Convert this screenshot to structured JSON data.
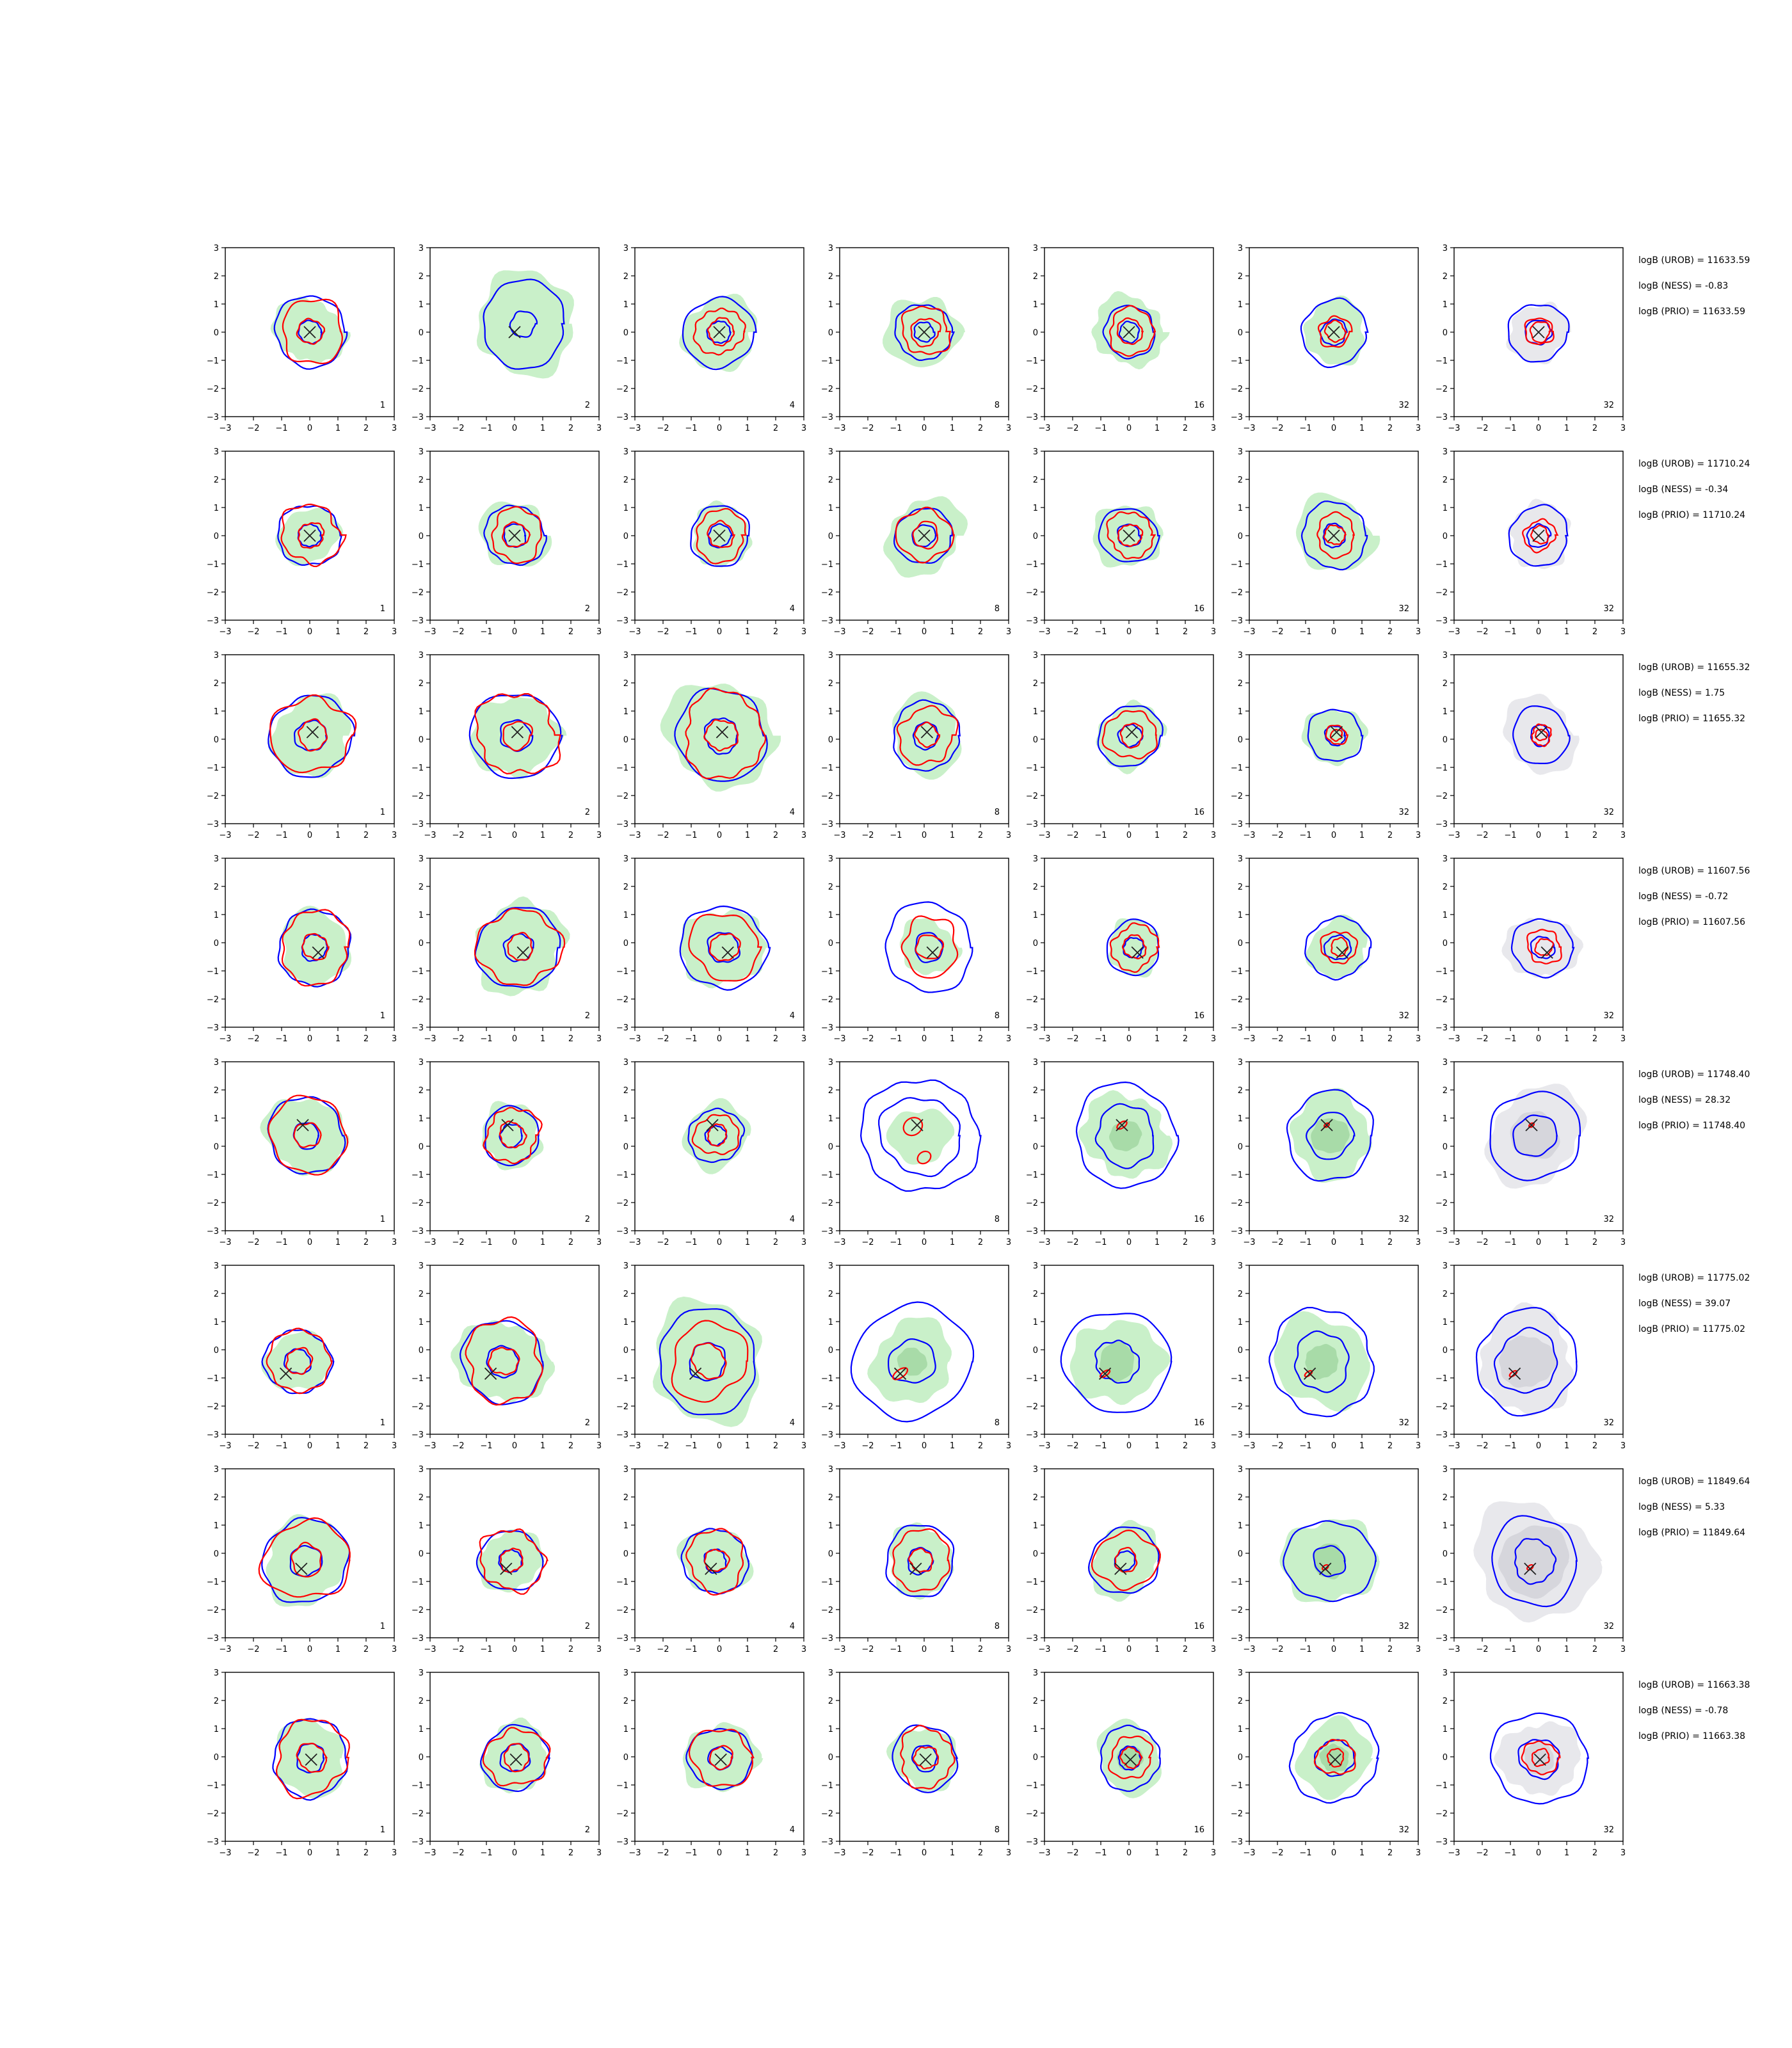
{
  "chart_data": {
    "type": "grid of contour plots",
    "rows": 8,
    "cols": 7,
    "xlim": [
      -3,
      3
    ],
    "ylim": [
      -3,
      3
    ],
    "ticks": [
      "−3",
      "−2",
      "−1",
      "0",
      "1",
      "2",
      "3"
    ],
    "grid": false,
    "column_labels": [
      "1",
      "2",
      "4",
      "8",
      "16",
      "32",
      "32"
    ],
    "colors": {
      "blue": "#0000ff",
      "red": "#ff0000",
      "green": "#c9f0c9",
      "green_dark": "#a8dba8",
      "grey": "#e8e8ec",
      "grey_dark": "#d6d6dc",
      "marker": "#222222"
    },
    "panels": [
      {
        "marker": [
          0.0,
          0.0
        ],
        "annotations": [
          "logB (UROB) = 11633.59",
          "logB (NESS) = -0.83",
          "logB (PRIO) = 11633.59"
        ],
        "cells": [
          {
            "green": [
              1.2
            ],
            "blue": [
              1.25,
              0.4
            ],
            "red": [
              1.1,
              0.45
            ]
          },
          {
            "green": [
              1.75
            ],
            "blue": [
              1.5,
              0.45
            ],
            "red": [],
            "shift": [
              0.3,
              0.3
            ]
          },
          {
            "green": [
              1.3
            ],
            "blue": [
              1.25,
              0.4
            ],
            "red": [
              0.85,
              0.45
            ]
          },
          {
            "green": [
              1.3
            ],
            "blue": [
              1.0,
              0.35
            ],
            "red": [
              0.85,
              0.5
            ]
          },
          {
            "green": [
              1.25
            ],
            "blue": [
              0.9,
              0.35
            ],
            "red": [
              0.8,
              0.45
            ]
          },
          {
            "green": [
              1.1
            ],
            "blue": [
              1.15,
              0.45
            ],
            "red": [
              0.55,
              0.35
            ]
          },
          {
            "grey": [
              1.05
            ],
            "blue": [
              1.05,
              0.45
            ],
            "red": [
              0.5,
              0.35
            ]
          }
        ]
      },
      {
        "marker": [
          0.0,
          0.0
        ],
        "annotations": [
          "logB (UROB) = 11710.24",
          "logB (NESS) = -0.34",
          "logB (PRIO) = 11710.24"
        ],
        "cells": [
          {
            "green": [
              1.05
            ],
            "blue": [
              1.1,
              0.4
            ],
            "red": [
              1.05,
              0.45
            ]
          },
          {
            "green": [
              1.2
            ],
            "blue": [
              1.05,
              0.4
            ],
            "red": [
              0.9,
              0.45
            ]
          },
          {
            "green": [
              1.05
            ],
            "blue": [
              1.05,
              0.4
            ],
            "red": [
              0.9,
              0.45
            ]
          },
          {
            "green": [
              1.35
            ],
            "blue": [
              1.0,
              0.4
            ],
            "red": [
              0.95,
              0.45
            ]
          },
          {
            "green": [
              1.2
            ],
            "blue": [
              1.0,
              0.4
            ],
            "red": [
              0.8,
              0.4
            ]
          },
          {
            "green": [
              1.35
            ],
            "blue": [
              1.15,
              0.4
            ],
            "red": [
              0.7,
              0.35
            ]
          },
          {
            "grey": [
              1.1
            ],
            "blue": [
              1.05,
              0.4
            ],
            "red": [
              0.55,
              0.3
            ]
          }
        ]
      },
      {
        "marker": [
          0.1,
          0.25
        ],
        "annotations": [
          "logB (UROB) = 11655.32",
          "logB (NESS) = 1.75",
          "logB (PRIO) = 11655.32"
        ],
        "cells": [
          {
            "green": [
              1.4
            ],
            "blue": [
              1.45,
              0.55
            ],
            "red": [
              1.4,
              0.5
            ]
          },
          {
            "green": [
              1.5
            ],
            "blue": [
              1.55,
              0.55
            ],
            "red": [
              1.45,
              0.5
            ]
          },
          {
            "green": [
              1.9
            ],
            "blue": [
              1.6,
              0.6
            ],
            "red": [
              1.45,
              0.55
            ]
          },
          {
            "green": [
              1.3
            ],
            "blue": [
              1.2,
              0.45
            ],
            "red": [
              1.0,
              0.4
            ]
          },
          {
            "green": [
              1.15
            ],
            "blue": [
              1.1,
              0.4
            ],
            "red": [
              0.9,
              0.4
            ]
          },
          {
            "green": [
              1.05
            ],
            "blue": [
              0.95,
              0.35
            ],
            "red": [
              0.35,
              0.2
            ]
          },
          {
            "grey": [
              1.3
            ],
            "blue": [
              1.0,
              0.35
            ],
            "red": [
              0.35,
              0.2
            ]
          }
        ]
      },
      {
        "marker": [
          0.3,
          -0.35
        ],
        "annotations": [
          "logB (UROB) = 11607.56",
          "logB (NESS) = -0.72",
          "logB (PRIO) = 11607.56"
        ],
        "cells": [
          {
            "green": [
              1.25
            ],
            "blue": [
              1.3,
              0.45
            ],
            "red": [
              1.25,
              0.45
            ]
          },
          {
            "green": [
              1.6
            ],
            "blue": [
              1.45,
              0.5
            ],
            "red": [
              1.4,
              0.45
            ]
          },
          {
            "green": [
              1.45
            ],
            "blue": [
              1.5,
              0.55
            ],
            "red": [
              1.2,
              0.5
            ]
          },
          {
            "green": [
              1.0
            ],
            "blue": [
              1.55,
              0.5
            ],
            "red": [
              1.0,
              0.45
            ]
          },
          {
            "green": [
              0.95
            ],
            "blue": [
              0.95,
              0.35
            ],
            "red": [
              0.8,
              0.4
            ]
          },
          {
            "green": [
              1.05
            ],
            "blue": [
              1.1,
              0.45
            ],
            "red": [
              0.6,
              0.3
            ]
          },
          {
            "grey": [
              1.2
            ],
            "blue": [
              1.05,
              0.4
            ],
            "red": [
              0.6,
              0.3
            ]
          }
        ]
      },
      {
        "marker": [
          -0.25,
          0.75
        ],
        "annotations": [
          "logB (UROB) = 11748.40",
          "logB (NESS) = 28.32",
          "logB (PRIO) = 11748.40"
        ],
        "cells": [
          {
            "green": [
              1.4
            ],
            "blue": [
              1.35,
              0.45
            ],
            "red": [
              1.35,
              0.45
            ]
          },
          {
            "green": [
              1.1
            ],
            "blue": [
              1.0,
              0.4
            ],
            "red": [
              0.95,
              0.45
            ]
          },
          {
            "green": [
              1.15
            ],
            "blue": [
              0.95,
              0.35
            ],
            "red": [
              0.75,
              0.35
            ]
          },
          {
            "green": [
              1.05
            ],
            "blue": [
              2.05,
              1.4
            ],
            "red": [],
            "extra_red": [
              [
                -0.4,
                0.7,
                0.35,
                0.3
              ],
              [
                0.0,
                -0.4,
                0.25,
                0.2
              ]
            ]
          },
          {
            "green": [
              1.5,
              0.55
            ],
            "blue": [
              1.8,
              1.05
            ],
            "red": [],
            "extra_red": [
              [
                -0.25,
                0.75,
                0.2,
                0.1
              ]
            ]
          },
          {
            "green": [
              1.45,
              0.65
            ],
            "blue": [
              1.55,
              0.8
            ],
            "red": [],
            "extra_red": [
              [
                -0.25,
                0.75,
                0.1,
                0.06
              ]
            ]
          },
          {
            "grey": [
              1.7,
              0.85
            ],
            "blue": [
              1.6,
              0.75
            ],
            "red": [],
            "extra_red": [
              [
                -0.25,
                0.75,
                0.1,
                0.06
              ]
            ]
          }
        ]
      },
      {
        "marker": [
          -0.85,
          -0.85
        ],
        "annotations": [
          "logB (UROB) = 11775.02",
          "logB (NESS) = 39.07",
          "logB (PRIO) = 11775.02"
        ],
        "cells": [
          {
            "green": [
              1.1
            ],
            "blue": [
              1.15,
              0.45
            ],
            "red": [
              1.1,
              0.45
            ]
          },
          {
            "green": [
              1.55
            ],
            "blue": [
              1.45,
              0.55
            ],
            "red": [
              1.4,
              0.5
            ]
          },
          {
            "green": [
              2.05
            ],
            "blue": [
              1.8,
              0.65
            ],
            "red": [
              1.35,
              0.6
            ]
          },
          {
            "green": [
              1.45,
              0.5
            ],
            "blue": [
              2.05,
              0.8
            ],
            "red": [],
            "extra_red": [
              [
                -0.85,
                -0.85,
                0.3,
                0.14
              ]
            ]
          },
          {
            "green": [
              1.55,
              0.65
            ],
            "blue": [
              1.85,
              0.75
            ],
            "red": [],
            "extra_red": [
              [
                -0.85,
                -0.85,
                0.2,
                0.08
              ]
            ]
          },
          {
            "green": [
              1.65,
              0.6
            ],
            "blue": [
              1.85,
              1.0
            ],
            "red": [],
            "extra_red": [
              [
                -0.9,
                -0.85,
                0.15,
                0.07
              ]
            ]
          },
          {
            "grey": [
              1.75,
              0.95
            ],
            "blue": [
              1.8,
              1.1
            ],
            "red": [],
            "extra_red": [
              [
                -0.9,
                -0.85,
                0.15,
                0.07
              ]
            ]
          }
        ]
      },
      {
        "marker": [
          -0.3,
          -0.55
        ],
        "annotations": [
          "logB (UROB) = 11849.64",
          "logB (NESS) = 5.33",
          "logB (PRIO) = 11849.64"
        ],
        "cells": [
          {
            "green": [
              1.5
            ],
            "blue": [
              1.5,
              0.55
            ],
            "red": [
              1.45,
              0.55
            ]
          },
          {
            "green": [
              1.1
            ],
            "blue": [
              1.1,
              0.4
            ],
            "red": [
              1.1,
              0.4
            ]
          },
          {
            "green": [
              1.2
            ],
            "blue": [
              1.15,
              0.4
            ],
            "red": [
              1.05,
              0.4
            ]
          },
          {
            "green": [
              1.2
            ],
            "blue": [
              1.25,
              0.45
            ],
            "red": [
              1.05,
              0.4
            ]
          },
          {
            "green": [
              1.25
            ],
            "blue": [
              1.2,
              0.35
            ],
            "red": [
              1.05,
              0.4
            ]
          },
          {
            "green": [
              1.6,
              0.6
            ],
            "blue": [
              1.5,
              0.55
            ],
            "red": [],
            "extra_red": [
              [
                -0.3,
                -0.5,
                0.12,
                0.07
              ]
            ]
          },
          {
            "grey": [
              2.1,
              1.25
            ],
            "blue": [
              1.55,
              0.75
            ],
            "red": [],
            "extra_red": [
              [
                -0.3,
                -0.5,
                0.12,
                0.07
              ]
            ]
          }
        ]
      },
      {
        "marker": [
          0.05,
          -0.1
        ],
        "annotations": [
          "logB (UROB) = 11663.38",
          "logB (NESS) = -0.78",
          "logB (PRIO) = 11663.38"
        ],
        "cells": [
          {
            "green": [
              1.3
            ],
            "blue": [
              1.35,
              0.5
            ],
            "red": [
              1.3,
              0.5
            ]
          },
          {
            "green": [
              1.2
            ],
            "blue": [
              1.15,
              0.5
            ],
            "red": [
              1.05,
              0.45
            ]
          },
          {
            "green": [
              1.25
            ],
            "blue": [
              1.1,
              0.4
            ],
            "red": [
              1.05,
              0.4
            ]
          },
          {
            "green": [
              1.15
            ],
            "blue": [
              1.15,
              0.45
            ],
            "red": [
              1.0,
              0.4
            ]
          },
          {
            "green": [
              1.2,
              0.45
            ],
            "blue": [
              1.1,
              0.4
            ],
            "red": [
              0.75,
              0.35
            ]
          },
          {
            "green": [
              1.3,
              0.5
            ],
            "blue": [
              1.55,
              0.65
            ],
            "red": [
              0.65,
              0.3
            ]
          },
          {
            "grey": [
              1.35,
              0.55
            ],
            "blue": [
              1.65,
              0.7
            ],
            "red": [
              0.6,
              0.3
            ]
          }
        ]
      }
    ]
  }
}
